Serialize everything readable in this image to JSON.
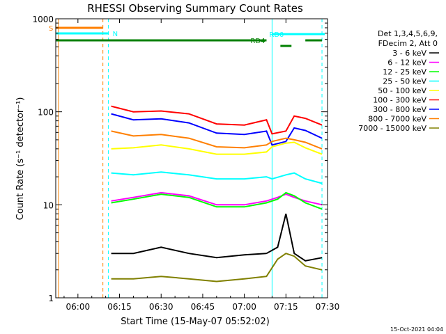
{
  "chart_data": {
    "type": "line",
    "title": "RHESSI Observing Summary Count Rates",
    "xlabel": "Start Time (15-May-07 05:52:02)",
    "ylabel": "Count Rate (s⁻¹ detector⁻¹)",
    "yscale": "log",
    "ylim": [
      1,
      1000
    ],
    "xlim": [
      "05:52",
      "07:30"
    ],
    "x_ticks": [
      "06:00",
      "06:15",
      "06:30",
      "06:45",
      "07:00",
      "07:15",
      "07:30"
    ],
    "y_ticks": [
      "1",
      "10",
      "100",
      "1000"
    ],
    "legend_header": [
      "Det 1,3,4,5,6,9,",
      "FDecim 2, Att 0"
    ],
    "legend_position": "right",
    "footer_date": "15-Oct-2021 04:04",
    "flags": [
      {
        "label": "S",
        "color": "#ff7f00",
        "start": "05:52",
        "end": "06:09"
      },
      {
        "label": "N",
        "color": "#00ffff",
        "start": "05:52",
        "end": "06:11"
      },
      {
        "label": "RD0",
        "color": "#00ffff",
        "start": "07:10",
        "end": "07:29"
      },
      {
        "label": "RD4",
        "color": "#008000",
        "start": "05:52",
        "end": "07:08"
      },
      {
        "label": "",
        "color": "#008000",
        "start": "07:13",
        "end": "07:17"
      },
      {
        "label": "",
        "color": "#008000",
        "start": "07:22",
        "end": "07:28"
      }
    ],
    "vlines": [
      {
        "time": "05:53",
        "color": "#00ffff",
        "style": "solid"
      },
      {
        "time": "05:53",
        "color": "#ff7f00",
        "style": "solid"
      },
      {
        "time": "06:09",
        "color": "#ff7f00",
        "style": "dashed"
      },
      {
        "time": "06:11",
        "color": "#00ffff",
        "style": "dashed"
      },
      {
        "time": "07:10",
        "color": "#00ffff",
        "style": "solid"
      },
      {
        "time": "07:28",
        "color": "#00ffff",
        "style": "dashed"
      }
    ],
    "series": [
      {
        "name": "3 - 6 keV",
        "color": "#000000",
        "x": [
          "06:12",
          "06:20",
          "06:30",
          "06:40",
          "06:50",
          "07:00",
          "07:08",
          "07:12",
          "07:15",
          "07:18",
          "07:22",
          "07:28"
        ],
        "y": [
          3,
          3,
          3.5,
          3,
          2.7,
          2.9,
          3,
          3.5,
          8,
          3,
          2.5,
          2.7
        ]
      },
      {
        "name": "6 - 12 keV",
        "color": "#ff00ff",
        "x": [
          "06:12",
          "06:20",
          "06:30",
          "06:40",
          "06:50",
          "07:00",
          "07:08",
          "07:12",
          "07:15",
          "07:18",
          "07:22",
          "07:28"
        ],
        "y": [
          11,
          12,
          13.5,
          12.5,
          10,
          10,
          11,
          12,
          13,
          12,
          11,
          10
        ]
      },
      {
        "name": "12 - 25 keV",
        "color": "#00ff00",
        "x": [
          "06:12",
          "06:20",
          "06:30",
          "06:40",
          "06:50",
          "07:00",
          "07:08",
          "07:12",
          "07:15",
          "07:18",
          "07:22",
          "07:28"
        ],
        "y": [
          10.5,
          11.5,
          13,
          12,
          9.5,
          9.5,
          10.5,
          11.5,
          13.5,
          12.5,
          10.5,
          9
        ]
      },
      {
        "name": "25 - 50 keV",
        "color": "#00ffff",
        "x": [
          "06:12",
          "06:20",
          "06:30",
          "06:40",
          "06:50",
          "07:00",
          "07:08",
          "07:10",
          "07:15",
          "07:18",
          "07:22",
          "07:28"
        ],
        "y": [
          22,
          21,
          22.5,
          21,
          19,
          19,
          20,
          19,
          21,
          22,
          19,
          17
        ]
      },
      {
        "name": "50 - 100 keV",
        "color": "#ffff00",
        "x": [
          "06:12",
          "06:20",
          "06:30",
          "06:40",
          "06:50",
          "07:00",
          "07:08",
          "07:10",
          "07:15",
          "07:18",
          "07:22",
          "07:28"
        ],
        "y": [
          40,
          41,
          44,
          40,
          35,
          35,
          37,
          42,
          46,
          47,
          41,
          35
        ]
      },
      {
        "name": "100 - 300 keV",
        "color": "#ff0000",
        "x": [
          "06:12",
          "06:20",
          "06:30",
          "06:40",
          "06:50",
          "07:00",
          "07:08",
          "07:10",
          "07:15",
          "07:18",
          "07:22",
          "07:28"
        ],
        "y": [
          115,
          100,
          102,
          95,
          74,
          72,
          82,
          58,
          62,
          90,
          85,
          72
        ]
      },
      {
        "name": "300 - 800 keV",
        "color": "#0000ff",
        "x": [
          "06:12",
          "06:20",
          "06:30",
          "06:40",
          "06:50",
          "07:00",
          "07:08",
          "07:10",
          "07:15",
          "07:18",
          "07:22",
          "07:28"
        ],
        "y": [
          95,
          82,
          84,
          76,
          59,
          57,
          62,
          44,
          48,
          67,
          63,
          52
        ]
      },
      {
        "name": "800 - 7000 keV",
        "color": "#ff7f00",
        "x": [
          "06:12",
          "06:20",
          "06:30",
          "06:40",
          "06:50",
          "07:00",
          "07:08",
          "07:10",
          "07:15",
          "07:18",
          "07:22",
          "07:28"
        ],
        "y": [
          62,
          55,
          57,
          52,
          42,
          41,
          44,
          48,
          52,
          50,
          47,
          40
        ]
      },
      {
        "name": "7000 - 15000 keV",
        "color": "#808000",
        "x": [
          "06:12",
          "06:20",
          "06:30",
          "06:40",
          "06:50",
          "07:00",
          "07:08",
          "07:12",
          "07:15",
          "07:18",
          "07:22",
          "07:28"
        ],
        "y": [
          1.6,
          1.6,
          1.7,
          1.6,
          1.5,
          1.6,
          1.7,
          2.6,
          3,
          2.8,
          2.2,
          2
        ]
      }
    ]
  }
}
